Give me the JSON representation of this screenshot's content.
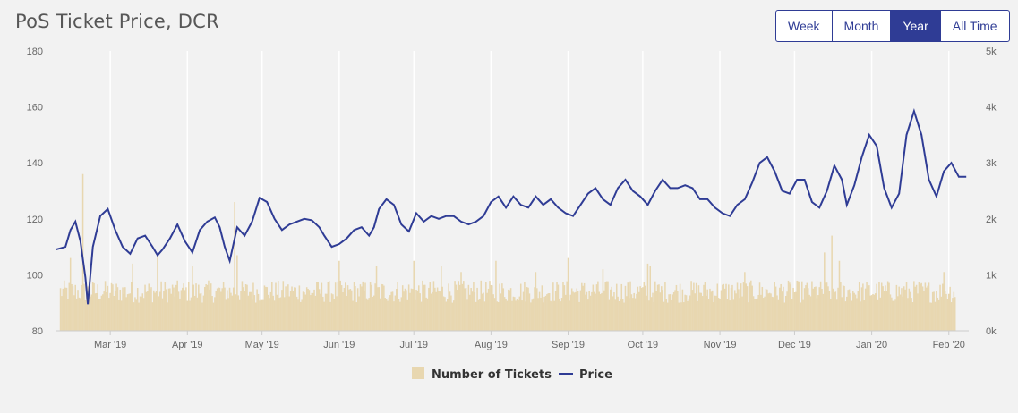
{
  "title": "PoS Ticket Price, DCR",
  "range_buttons": [
    {
      "label": "Week",
      "active": false
    },
    {
      "label": "Month",
      "active": false
    },
    {
      "label": "Year",
      "active": true
    },
    {
      "label": "All Time",
      "active": false
    }
  ],
  "colors": {
    "price": "#2f3c95",
    "tickets": "#e8d7b0",
    "accent": "#2f3c95"
  },
  "chart_data": {
    "type": "line",
    "title": "PoS Ticket Price, DCR",
    "x_range": [
      "2019-02-07",
      "2020-02-09"
    ],
    "x_ticks": [
      {
        "date": "2019-03-01",
        "label": "Mar '19"
      },
      {
        "date": "2019-04-01",
        "label": "Apr '19"
      },
      {
        "date": "2019-05-01",
        "label": "May '19"
      },
      {
        "date": "2019-06-01",
        "label": "Jun '19"
      },
      {
        "date": "2019-07-01",
        "label": "Jul '19"
      },
      {
        "date": "2019-08-01",
        "label": "Aug '19"
      },
      {
        "date": "2019-09-01",
        "label": "Sep '19"
      },
      {
        "date": "2019-10-01",
        "label": "Oct '19"
      },
      {
        "date": "2019-11-01",
        "label": "Nov '19"
      },
      {
        "date": "2019-12-01",
        "label": "Dec '19"
      },
      {
        "date": "2020-01-01",
        "label": "Jan '20"
      },
      {
        "date": "2020-02-01",
        "label": "Feb '20"
      }
    ],
    "y_left": {
      "min": 80,
      "max": 180,
      "ticks": [
        "80",
        "100",
        "120",
        "140",
        "160",
        "180"
      ]
    },
    "y_right": {
      "min": 0,
      "max": 5000,
      "ticks": [
        "0k",
        "1k",
        "2k",
        "3k",
        "4k",
        "5k"
      ]
    },
    "grid": "vertical",
    "legend": {
      "placement": "bottom-center"
    },
    "series": [
      {
        "name": "Number of Tickets",
        "type": "bar",
        "axis": "right",
        "typical_range": [
          500,
          900
        ],
        "spikes": [
          {
            "date": "2019-02-13",
            "value": 1300
          },
          {
            "date": "2019-02-18",
            "value": 2800
          },
          {
            "date": "2019-03-10",
            "value": 1200
          },
          {
            "date": "2019-03-20",
            "value": 1350
          },
          {
            "date": "2019-04-03",
            "value": 1150
          },
          {
            "date": "2019-04-20",
            "value": 2300
          },
          {
            "date": "2019-04-21",
            "value": 1350
          },
          {
            "date": "2019-06-01",
            "value": 1250
          },
          {
            "date": "2019-06-16",
            "value": 1150
          },
          {
            "date": "2019-07-01",
            "value": 1250
          },
          {
            "date": "2019-07-12",
            "value": 1150
          },
          {
            "date": "2019-07-20",
            "value": 1050
          },
          {
            "date": "2019-08-03",
            "value": 1250
          },
          {
            "date": "2019-08-19",
            "value": 1050
          },
          {
            "date": "2019-09-01",
            "value": 1300
          },
          {
            "date": "2019-09-15",
            "value": 1100
          },
          {
            "date": "2019-10-03",
            "value": 1200
          },
          {
            "date": "2019-10-04",
            "value": 1150
          },
          {
            "date": "2019-11-11",
            "value": 1050
          },
          {
            "date": "2019-12-13",
            "value": 1400
          },
          {
            "date": "2019-12-16",
            "value": 1700
          },
          {
            "date": "2019-12-19",
            "value": 1250
          },
          {
            "date": "2020-01-30",
            "value": 1050
          }
        ]
      },
      {
        "name": "Price",
        "type": "line",
        "axis": "left",
        "points": [
          [
            "2019-02-07",
            109
          ],
          [
            "2019-02-09",
            109.5
          ],
          [
            "2019-02-11",
            110
          ],
          [
            "2019-02-13",
            116
          ],
          [
            "2019-02-15",
            119
          ],
          [
            "2019-02-17",
            112
          ],
          [
            "2019-02-19",
            99
          ],
          [
            "2019-02-20",
            89.5
          ],
          [
            "2019-02-22",
            110
          ],
          [
            "2019-02-25",
            121
          ],
          [
            "2019-02-28",
            123.5
          ],
          [
            "2019-03-03",
            116
          ],
          [
            "2019-03-06",
            110
          ],
          [
            "2019-03-09",
            107.5
          ],
          [
            "2019-03-12",
            113
          ],
          [
            "2019-03-15",
            114
          ],
          [
            "2019-03-18",
            110
          ],
          [
            "2019-03-20",
            107
          ],
          [
            "2019-03-22",
            109
          ],
          [
            "2019-03-25",
            113
          ],
          [
            "2019-03-28",
            118
          ],
          [
            "2019-03-31",
            112
          ],
          [
            "2019-04-03",
            108
          ],
          [
            "2019-04-06",
            116
          ],
          [
            "2019-04-09",
            119
          ],
          [
            "2019-04-12",
            120.5
          ],
          [
            "2019-04-14",
            117
          ],
          [
            "2019-04-16",
            110
          ],
          [
            "2019-04-18",
            105
          ],
          [
            "2019-04-21",
            117
          ],
          [
            "2019-04-24",
            114
          ],
          [
            "2019-04-27",
            119
          ],
          [
            "2019-04-30",
            127.5
          ],
          [
            "2019-05-03",
            126
          ],
          [
            "2019-05-06",
            120
          ],
          [
            "2019-05-09",
            116
          ],
          [
            "2019-05-12",
            118
          ],
          [
            "2019-05-15",
            119
          ],
          [
            "2019-05-18",
            120
          ],
          [
            "2019-05-21",
            119.5
          ],
          [
            "2019-05-24",
            117
          ],
          [
            "2019-05-26",
            114
          ],
          [
            "2019-05-29",
            110
          ],
          [
            "2019-06-01",
            111
          ],
          [
            "2019-06-04",
            113
          ],
          [
            "2019-06-07",
            116
          ],
          [
            "2019-06-10",
            117
          ],
          [
            "2019-06-13",
            114
          ],
          [
            "2019-06-15",
            117
          ],
          [
            "2019-06-17",
            123.5
          ],
          [
            "2019-06-20",
            127
          ],
          [
            "2019-06-23",
            125
          ],
          [
            "2019-06-26",
            118
          ],
          [
            "2019-06-29",
            115.5
          ],
          [
            "2019-07-02",
            122
          ],
          [
            "2019-07-05",
            119
          ],
          [
            "2019-07-08",
            121
          ],
          [
            "2019-07-11",
            120
          ],
          [
            "2019-07-14",
            121
          ],
          [
            "2019-07-17",
            121
          ],
          [
            "2019-07-20",
            119
          ],
          [
            "2019-07-23",
            118
          ],
          [
            "2019-07-26",
            119
          ],
          [
            "2019-07-29",
            121
          ],
          [
            "2019-08-01",
            126
          ],
          [
            "2019-08-04",
            128
          ],
          [
            "2019-08-07",
            124
          ],
          [
            "2019-08-10",
            128
          ],
          [
            "2019-08-13",
            125
          ],
          [
            "2019-08-16",
            124
          ],
          [
            "2019-08-19",
            128
          ],
          [
            "2019-08-22",
            125
          ],
          [
            "2019-08-25",
            127
          ],
          [
            "2019-08-28",
            124
          ],
          [
            "2019-08-31",
            122
          ],
          [
            "2019-09-03",
            121
          ],
          [
            "2019-09-06",
            125
          ],
          [
            "2019-09-09",
            129
          ],
          [
            "2019-09-12",
            131
          ],
          [
            "2019-09-15",
            127
          ],
          [
            "2019-09-18",
            125
          ],
          [
            "2019-09-21",
            131
          ],
          [
            "2019-09-24",
            134
          ],
          [
            "2019-09-27",
            130
          ],
          [
            "2019-09-30",
            128
          ],
          [
            "2019-10-03",
            125
          ],
          [
            "2019-10-06",
            130
          ],
          [
            "2019-10-09",
            134
          ],
          [
            "2019-10-12",
            131
          ],
          [
            "2019-10-15",
            131
          ],
          [
            "2019-10-18",
            132
          ],
          [
            "2019-10-21",
            131
          ],
          [
            "2019-10-24",
            127
          ],
          [
            "2019-10-27",
            127
          ],
          [
            "2019-10-30",
            124
          ],
          [
            "2019-11-02",
            122
          ],
          [
            "2019-11-05",
            121
          ],
          [
            "2019-11-08",
            125
          ],
          [
            "2019-11-11",
            127
          ],
          [
            "2019-11-14",
            133
          ],
          [
            "2019-11-17",
            140
          ],
          [
            "2019-11-20",
            142
          ],
          [
            "2019-11-23",
            137
          ],
          [
            "2019-11-26",
            130
          ],
          [
            "2019-11-29",
            129
          ],
          [
            "2019-12-02",
            134
          ],
          [
            "2019-12-05",
            134
          ],
          [
            "2019-12-08",
            126
          ],
          [
            "2019-12-11",
            124
          ],
          [
            "2019-12-14",
            130
          ],
          [
            "2019-12-17",
            139
          ],
          [
            "2019-12-20",
            134
          ],
          [
            "2019-12-22",
            125
          ],
          [
            "2019-12-25",
            132
          ],
          [
            "2019-12-28",
            142
          ],
          [
            "2019-12-31",
            150
          ],
          [
            "2020-01-03",
            146
          ],
          [
            "2020-01-06",
            131
          ],
          [
            "2020-01-09",
            124
          ],
          [
            "2020-01-12",
            129
          ],
          [
            "2020-01-15",
            150
          ],
          [
            "2020-01-18",
            158.5
          ],
          [
            "2020-01-21",
            150
          ],
          [
            "2020-01-24",
            134
          ],
          [
            "2020-01-27",
            128
          ],
          [
            "2020-01-30",
            137
          ],
          [
            "2020-02-02",
            140
          ],
          [
            "2020-02-05",
            135
          ],
          [
            "2020-02-08",
            135
          ]
        ]
      }
    ]
  }
}
